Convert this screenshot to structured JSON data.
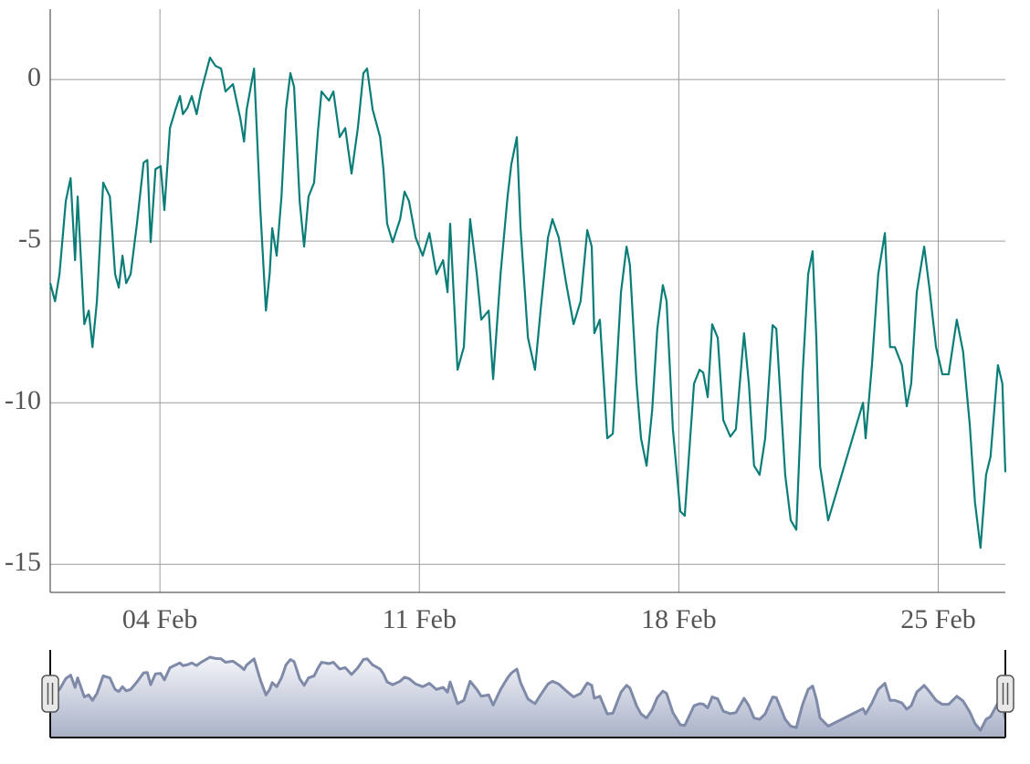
{
  "chart_data": {
    "type": "line",
    "color": "#0b7d78",
    "grid": true,
    "range_selector": true,
    "xlim": [
      1.04,
      26.81
    ],
    "ylim": [
      -15.87,
      2.18
    ],
    "xticks": [
      {
        "value": 4,
        "label": "04 Feb"
      },
      {
        "value": 11,
        "label": "11 Feb"
      },
      {
        "value": 18,
        "label": "18 Feb"
      },
      {
        "value": 25,
        "label": "25 Feb"
      }
    ],
    "yticks": [
      0,
      -5,
      -10,
      -15
    ],
    "x": [
      1.04,
      1.17,
      1.29,
      1.46,
      1.59,
      1.71,
      1.78,
      1.96,
      2.08,
      2.18,
      2.3,
      2.47,
      2.65,
      2.79,
      2.89,
      2.99,
      3.09,
      3.21,
      3.38,
      3.56,
      3.66,
      3.75,
      3.88,
      4.02,
      4.12,
      4.27,
      4.42,
      4.54,
      4.62,
      4.74,
      4.86,
      4.99,
      5.11,
      5.35,
      5.5,
      5.65,
      5.77,
      5.97,
      6.17,
      6.27,
      6.34,
      6.54,
      6.71,
      6.86,
      6.96,
      7.03,
      7.15,
      7.28,
      7.4,
      7.52,
      7.62,
      7.77,
      7.89,
      8.01,
      8.16,
      8.26,
      8.36,
      8.56,
      8.68,
      8.85,
      9.0,
      9.17,
      9.34,
      9.49,
      9.59,
      9.74,
      9.94,
      10.03,
      10.13,
      10.28,
      10.48,
      10.6,
      10.72,
      10.9,
      11.09,
      11.27,
      11.46,
      11.64,
      11.76,
      11.83,
      12.03,
      12.2,
      12.37,
      12.55,
      12.67,
      12.87,
      12.99,
      13.19,
      13.38,
      13.48,
      13.63,
      13.73,
      13.93,
      14.12,
      14.27,
      14.47,
      14.59,
      14.76,
      14.96,
      15.16,
      15.35,
      15.53,
      15.65,
      15.72,
      15.87,
      16.07,
      16.22,
      16.44,
      16.59,
      16.68,
      16.86,
      16.98,
      17.13,
      17.28,
      17.42,
      17.57,
      17.67,
      17.84,
      18.04,
      18.16,
      18.41,
      18.56,
      18.66,
      18.78,
      18.9,
      19.05,
      19.2,
      19.39,
      19.54,
      19.76,
      19.89,
      20.03,
      20.18,
      20.33,
      20.53,
      20.63,
      20.75,
      20.87,
      21.02,
      21.17,
      21.34,
      21.49,
      21.61,
      21.71,
      21.81,
      22.03,
      22.97,
      23.04,
      23.21,
      23.38,
      23.56,
      23.7,
      23.83,
      24.02,
      24.15,
      24.27,
      24.42,
      24.62,
      24.76,
      24.94,
      25.11,
      25.28,
      25.5,
      25.67,
      25.85,
      25.99,
      26.14,
      26.29,
      26.41,
      26.61,
      26.73,
      26.81
    ],
    "values": [
      -6.3,
      -6.86,
      -6.02,
      -3.76,
      -3.05,
      -5.59,
      -3.62,
      -7.57,
      -7.15,
      -8.28,
      -6.86,
      -3.19,
      -3.62,
      -6.02,
      -6.44,
      -5.45,
      -6.3,
      -6.02,
      -4.46,
      -2.57,
      -2.49,
      -5.03,
      -2.77,
      -2.68,
      -4.04,
      -1.5,
      -0.93,
      -0.51,
      -1.07,
      -0.88,
      -0.51,
      -1.07,
      -0.37,
      0.68,
      0.42,
      0.34,
      -0.37,
      -0.14,
      -1.21,
      -1.92,
      -0.93,
      0.34,
      -4.04,
      -7.15,
      -6.02,
      -4.6,
      -5.45,
      -3.62,
      -0.93,
      0.2,
      -0.23,
      -3.76,
      -5.17,
      -3.62,
      -3.19,
      -1.64,
      -0.37,
      -0.65,
      -0.37,
      -1.78,
      -1.5,
      -2.91,
      -1.5,
      0.2,
      0.34,
      -0.93,
      -1.78,
      -2.77,
      -4.46,
      -5.03,
      -4.32,
      -3.47,
      -3.76,
      -4.89,
      -5.45,
      -4.75,
      -6.02,
      -5.59,
      -6.58,
      -4.46,
      -8.98,
      -8.28,
      -4.32,
      -6.02,
      -7.43,
      -7.15,
      -9.27,
      -6.02,
      -3.62,
      -2.63,
      -1.78,
      -4.6,
      -7.99,
      -8.98,
      -7.15,
      -4.89,
      -4.32,
      -4.89,
      -6.3,
      -7.57,
      -6.86,
      -4.66,
      -5.17,
      -7.85,
      -7.43,
      -11.1,
      -10.96,
      -6.58,
      -5.17,
      -5.73,
      -9.41,
      -11.1,
      -11.95,
      -10.25,
      -7.71,
      -6.36,
      -6.86,
      -10.82,
      -13.36,
      -13.5,
      -9.41,
      -8.98,
      -9.07,
      -9.83,
      -7.57,
      -7.99,
      -10.54,
      -11.05,
      -10.82,
      -7.85,
      -9.41,
      -11.95,
      -12.23,
      -11.1,
      -7.6,
      -7.71,
      -9.97,
      -12.23,
      -13.64,
      -13.93,
      -9.12,
      -6.02,
      -5.31,
      -7.99,
      -11.95,
      -13.64,
      -10.0,
      -11.1,
      -8.84,
      -6.02,
      -4.75,
      -8.28,
      -8.28,
      -8.84,
      -10.11,
      -9.41,
      -6.58,
      -5.17,
      -6.44,
      -8.28,
      -9.12,
      -9.12,
      -7.43,
      -8.42,
      -10.68,
      -13.08,
      -14.49,
      -12.23,
      -11.67,
      -8.84,
      -9.41,
      -12.15
    ]
  }
}
